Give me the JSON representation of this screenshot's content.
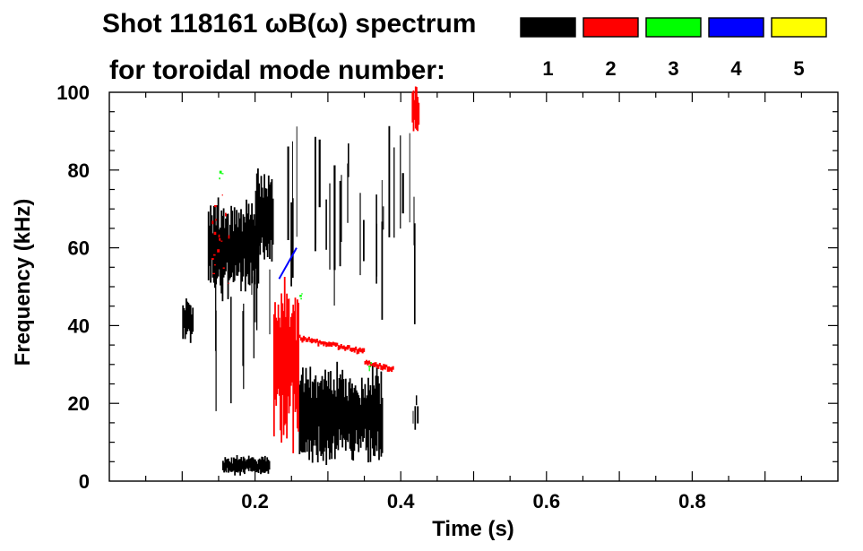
{
  "chart_data": {
    "type": "heatmap",
    "title_line1": "Shot 118161 ωB(ω) spectrum",
    "title_line2": "for toroidal mode number:",
    "xlabel": "Time (s)",
    "ylabel": "Frequency (kHz)",
    "xlim": [
      0.0,
      1.0
    ],
    "ylim": [
      0,
      100
    ],
    "x_ticks": [
      0.2,
      0.4,
      0.6,
      0.8
    ],
    "x_tick_labels": [
      "0.2",
      "0.4",
      "0.6",
      "0.8"
    ],
    "x_minor_step": 0.05,
    "y_ticks": [
      0,
      20,
      40,
      60,
      80,
      100
    ],
    "y_tick_labels": [
      "0",
      "20",
      "40",
      "60",
      "80",
      "100"
    ],
    "y_minor_step": 5,
    "legend": {
      "placement": "top-right",
      "entries": [
        {
          "mode": 1,
          "label": "1",
          "color": "#000000"
        },
        {
          "mode": 2,
          "label": "2",
          "color": "#ff0000"
        },
        {
          "mode": 3,
          "label": "3",
          "color": "#00ff00"
        },
        {
          "mode": 4,
          "label": "4",
          "color": "#0000ff"
        },
        {
          "mode": 5,
          "label": "5",
          "color": "#ffff00"
        }
      ]
    },
    "regions": [
      {
        "mode": 1,
        "t": [
          0.1,
          0.115
        ],
        "f": [
          37,
          46
        ],
        "density": "solid"
      },
      {
        "mode": 1,
        "t": [
          0.135,
          0.205
        ],
        "f": [
          50,
          70
        ],
        "density": "solid"
      },
      {
        "mode": 1,
        "t": [
          0.2,
          0.225
        ],
        "f": [
          57,
          77
        ],
        "density": "solid"
      },
      {
        "mode": 1,
        "t": [
          0.13,
          0.225
        ],
        "f": [
          18,
          68
        ],
        "density": "streaks"
      },
      {
        "mode": 1,
        "t": [
          0.155,
          0.22
        ],
        "f": [
          2,
          6
        ],
        "density": "solid"
      },
      {
        "mode": 1,
        "t": [
          0.24,
          0.43
        ],
        "f": [
          40,
          92
        ],
        "density": "streaks"
      },
      {
        "mode": 1,
        "t": [
          0.26,
          0.375
        ],
        "f": [
          7,
          27
        ],
        "density": "solid"
      },
      {
        "mode": 1,
        "t": [
          0.415,
          0.425
        ],
        "f": [
          12,
          23
        ],
        "density": "streaks"
      },
      {
        "mode": 2,
        "t": [
          0.225,
          0.26
        ],
        "f": [
          12,
          47
        ],
        "density": "solid"
      },
      {
        "mode": 2,
        "t": [
          0.26,
          0.35
        ],
        "f": [
          32,
          38
        ],
        "density": "band"
      },
      {
        "mode": 2,
        "t": [
          0.35,
          0.39
        ],
        "f": [
          28,
          31
        ],
        "density": "band"
      },
      {
        "mode": 2,
        "t": [
          0.415,
          0.425
        ],
        "f": [
          90,
          100
        ],
        "density": "solid"
      },
      {
        "mode": 2,
        "t": [
          0.14,
          0.165
        ],
        "f": [
          50,
          74
        ],
        "density": "sparse"
      },
      {
        "mode": 3,
        "t": [
          0.15,
          0.155
        ],
        "f": [
          78,
          80
        ],
        "density": "sparse"
      },
      {
        "mode": 3,
        "t": [
          0.26,
          0.265
        ],
        "f": [
          47,
          49
        ],
        "density": "sparse"
      },
      {
        "mode": 3,
        "t": [
          0.355,
          0.36
        ],
        "f": [
          29,
          31
        ],
        "density": "sparse"
      },
      {
        "mode": 4,
        "t": [
          0.233,
          0.257
        ],
        "f": [
          52,
          60
        ],
        "density": "line"
      }
    ]
  }
}
